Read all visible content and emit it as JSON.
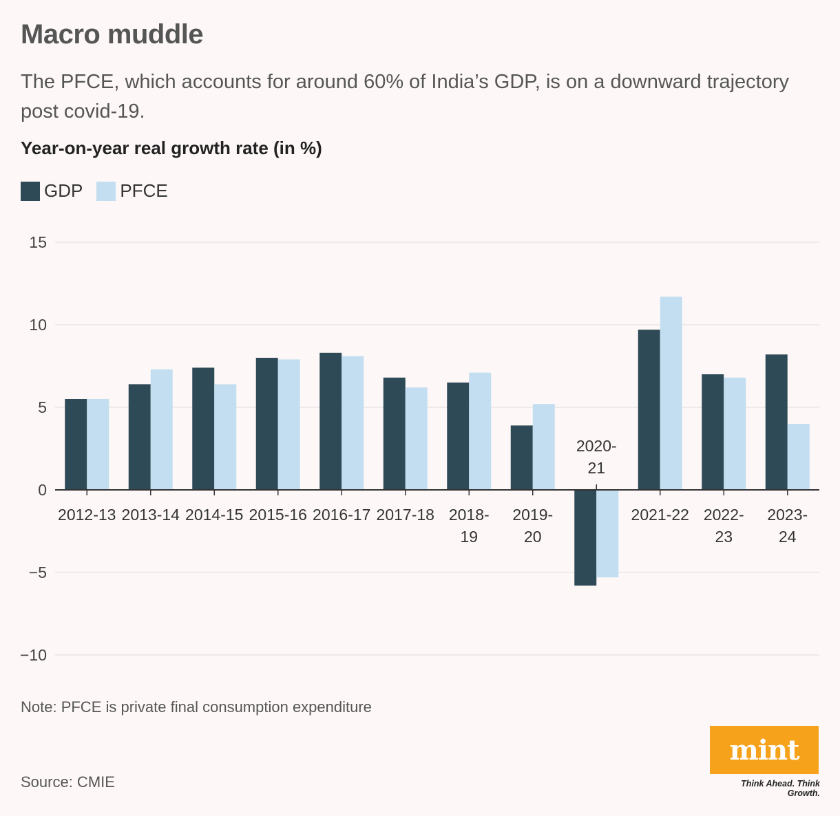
{
  "header": {
    "title": "Macro muddle",
    "subtitle": "The PFCE, which accounts for around 60% of India’s GDP, is on a downward trajectory post covid-19.",
    "chart_heading": "Year-on-year real growth rate (in %)"
  },
  "legend": {
    "items": [
      {
        "label": "GDP",
        "color": "#2f4a57"
      },
      {
        "label": "PFCE",
        "color": "#c3def0"
      }
    ]
  },
  "colors": {
    "gdp": "#2f4a57",
    "pfce": "#c3def0",
    "grid": "#dddddd",
    "axis": "#333333",
    "background": "#fdf8f7",
    "logo": "#f7a21b"
  },
  "chart_data": {
    "type": "bar",
    "title": "Year-on-year real growth rate (in %)",
    "categories": [
      "2012-13",
      "2013-14",
      "2014-15",
      "2015-16",
      "2016-17",
      "2017-18",
      "2018-19",
      "2019-20",
      "2020-21",
      "2021-22",
      "2022-23",
      "2023-24"
    ],
    "category_label_lines": [
      [
        "2012-13"
      ],
      [
        "2013-14"
      ],
      [
        "2014-15"
      ],
      [
        "2015-16"
      ],
      [
        "2016-17"
      ],
      [
        "2017-18"
      ],
      [
        "2018-",
        "19"
      ],
      [
        "2019-",
        "20"
      ],
      [
        "2020-",
        "21"
      ],
      [
        "2021-22"
      ],
      [
        "2022-",
        "23"
      ],
      [
        "2023-",
        "24"
      ]
    ],
    "series": [
      {
        "name": "GDP",
        "values": [
          5.5,
          6.4,
          7.4,
          8.0,
          8.3,
          6.8,
          6.5,
          3.9,
          -5.8,
          9.7,
          7.0,
          8.2
        ]
      },
      {
        "name": "PFCE",
        "values": [
          5.5,
          7.3,
          6.4,
          7.9,
          8.1,
          6.2,
          7.1,
          5.2,
          -5.3,
          11.7,
          6.8,
          4.0
        ]
      }
    ],
    "y_ticks": [
      15,
      10,
      5,
      0,
      -5,
      -10
    ],
    "y_tick_labels": [
      "15",
      "10",
      "5",
      "0",
      "−5",
      "−10"
    ],
    "ylim": [
      -10,
      15
    ],
    "grid": true,
    "legend_position": "top-left"
  },
  "footer": {
    "note": "Note: PFCE is private final consumption expenditure",
    "source": "Source: CMIE",
    "logo_text": "mint",
    "tagline": "Think Ahead. Think Growth."
  }
}
